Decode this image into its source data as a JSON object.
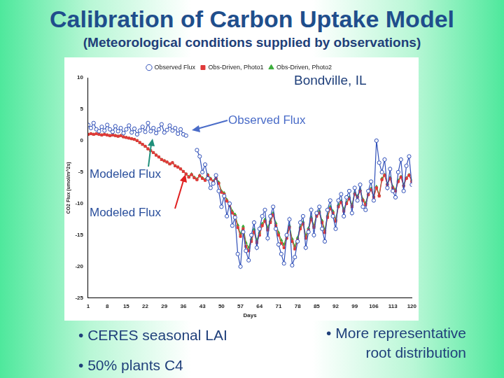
{
  "slide": {
    "title": "Calibration of Carbon Uptake Model",
    "subtitle": "(Meteorological conditions supplied by observations)",
    "annotations": {
      "location": "Bondville, IL",
      "observed": "Observed Flux",
      "modeled": [
        "Modeled Flux",
        "Modeled Flux"
      ]
    },
    "bullets_left": [
      "• CERES seasonal LAI",
      "• 50% plants C4"
    ],
    "bullets_right": [
      "• More representative",
      "root distribution"
    ]
  },
  "chart_data": {
    "type": "line",
    "x_label": "Days",
    "y_label": "CO2 Flux (umol/m^2s)",
    "x": [
      1,
      2,
      3,
      4,
      5,
      6,
      7,
      8,
      9,
      10,
      11,
      12,
      13,
      14,
      15,
      16,
      17,
      18,
      19,
      20,
      21,
      22,
      23,
      24,
      25,
      26,
      27,
      28,
      29,
      30,
      31,
      32,
      33,
      34,
      35,
      36,
      37,
      38,
      39,
      40,
      41,
      42,
      43,
      44,
      45,
      46,
      47,
      48,
      49,
      50,
      51,
      52,
      53,
      54,
      55,
      56,
      57,
      58,
      59,
      60,
      61,
      62,
      63,
      64,
      65,
      66,
      67,
      68,
      69,
      70,
      71,
      72,
      73,
      74,
      75,
      76,
      77,
      78,
      79,
      80,
      81,
      82,
      83,
      84,
      85,
      86,
      87,
      88,
      89,
      90,
      91,
      92,
      93,
      94,
      95,
      96,
      97,
      98,
      99,
      100,
      101,
      102,
      103,
      104,
      105,
      106,
      107,
      108,
      109,
      110,
      111,
      112,
      113,
      114,
      115,
      116,
      117,
      118,
      119,
      120
    ],
    "xlim": [
      1,
      120
    ],
    "xticks": [
      1,
      8,
      15,
      22,
      29,
      36,
      43,
      50,
      57,
      64,
      71,
      78,
      85,
      92,
      99,
      106,
      113,
      120
    ],
    "ylim": [
      -25,
      10
    ],
    "yticks": [
      -25,
      -20,
      -15,
      -10,
      -5,
      0,
      5,
      10
    ],
    "grid": false,
    "legend": "top",
    "series": [
      {
        "name": "Observed Flux",
        "color": "#2f4fb8",
        "marker": "circle",
        "values": [
          2.5,
          2.0,
          2.8,
          1.8,
          1.5,
          2.2,
          1.6,
          2.5,
          1.8,
          1.4,
          2.3,
          1.5,
          2.0,
          1.2,
          1.8,
          2.4,
          1.3,
          1.9,
          1.0,
          1.6,
          2.2,
          1.4,
          2.8,
          1.5,
          2.0,
          1.2,
          1.8,
          2.6,
          1.3,
          1.7,
          2.4,
          1.6,
          2.0,
          1.1,
          1.8,
          1.0,
          0.8,
          null,
          null,
          null,
          -1.5,
          -2.5,
          -5.0,
          -3.8,
          -6.0,
          -7.5,
          -6.8,
          -5.5,
          -8.0,
          -10.5,
          -8.8,
          -12.0,
          -10.0,
          -13.5,
          -12.2,
          -18.0,
          -20.0,
          -14.5,
          -17.5,
          -19.0,
          -15.0,
          -13.0,
          -17.0,
          -14.0,
          -12.0,
          -11.0,
          -15.5,
          -12.0,
          -10.5,
          -14.0,
          -16.5,
          -18.0,
          -19.5,
          -15.0,
          -12.5,
          -19.8,
          -18.5,
          -16.0,
          -13.0,
          -12.0,
          -17.0,
          -14.5,
          -11.0,
          -15.0,
          -11.5,
          -10.5,
          -14.0,
          -16.0,
          -11.0,
          -9.5,
          -12.0,
          -14.0,
          -9.5,
          -8.5,
          -12.0,
          -9.0,
          -8.0,
          -11.5,
          -7.5,
          -9.5,
          -7.0,
          -10.5,
          -11.0,
          -8.0,
          -6.5,
          -9.5,
          0.0,
          -3.5,
          -5.0,
          -3.0,
          -7.5,
          -4.5,
          -8.0,
          -9.0,
          -5.0,
          -3.0,
          -8.0,
          -4.0,
          -2.5,
          -7.0
        ]
      },
      {
        "name": "Obs-Driven, Photo1",
        "color": "#e03a3a",
        "marker": "square",
        "values": [
          1.0,
          1.1,
          1.0,
          1.1,
          1.0,
          0.9,
          1.0,
          0.9,
          0.8,
          0.9,
          0.8,
          0.7,
          0.8,
          0.6,
          0.5,
          0.4,
          0.3,
          0.2,
          0.0,
          -0.3,
          -0.6,
          -0.9,
          -1.3,
          -1.6,
          -1.9,
          -2.3,
          -2.6,
          -3.0,
          -3.2,
          -3.4,
          -3.7,
          -3.5,
          -4.0,
          -4.2,
          -4.5,
          -4.9,
          -5.3,
          -5.8,
          -5.4,
          -5.9,
          -6.2,
          -5.6,
          -6.0,
          -6.3,
          -5.5,
          -6.1,
          -6.5,
          -6.0,
          -6.8,
          -8.2,
          -8.5,
          -9.6,
          -10.3,
          -11.5,
          -12.0,
          -13.8,
          -15.2,
          -14.0,
          -16.8,
          -17.5,
          -16.0,
          -14.5,
          -16.2,
          -15.0,
          -13.5,
          -12.8,
          -14.2,
          -13.0,
          -11.8,
          -13.5,
          -15.0,
          -16.3,
          -17.0,
          -15.5,
          -13.8,
          -16.0,
          -17.2,
          -15.8,
          -14.0,
          -13.2,
          -15.5,
          -14.2,
          -12.5,
          -13.8,
          -12.0,
          -11.5,
          -13.0,
          -14.6,
          -12.2,
          -10.8,
          -11.5,
          -12.8,
          -10.5,
          -9.8,
          -11.2,
          -10.0,
          -9.2,
          -10.5,
          -8.5,
          -9.0,
          -8.0,
          -9.5,
          -10.2,
          -8.6,
          -7.8,
          -9.0,
          -7.5,
          -8.8,
          -6.2,
          -5.5,
          -7.0,
          -6.0,
          -7.5,
          -8.0,
          -6.5,
          -5.8,
          -7.2,
          -6.0,
          -5.5,
          -6.5
        ]
      },
      {
        "name": "Obs-Driven, Photo2",
        "color": "#3cad3c",
        "marker": "triangle",
        "values": [
          1.0,
          1.1,
          1.0,
          1.1,
          1.0,
          0.9,
          1.0,
          0.9,
          0.8,
          0.9,
          0.8,
          0.7,
          0.8,
          0.6,
          0.5,
          0.4,
          0.3,
          0.2,
          0.0,
          -0.3,
          -0.6,
          -0.9,
          -1.3,
          -1.6,
          -1.9,
          -2.3,
          -2.6,
          -3.0,
          -3.2,
          -3.4,
          -3.7,
          -3.5,
          -4.0,
          -4.2,
          -4.5,
          -4.9,
          -5.3,
          -5.7,
          -5.3,
          -5.8,
          -6.1,
          -5.5,
          -5.9,
          -6.2,
          -5.4,
          -6.0,
          -6.4,
          -5.9,
          -6.6,
          -8.0,
          -8.3,
          -9.4,
          -10.0,
          -11.2,
          -11.7,
          -13.4,
          -14.8,
          -13.6,
          -16.2,
          -17.0,
          -15.6,
          -14.1,
          -15.8,
          -14.6,
          -13.2,
          -12.5,
          -13.8,
          -12.7,
          -11.5,
          -13.1,
          -14.6,
          -15.8,
          -16.5,
          -15.1,
          -13.5,
          -15.6,
          -16.8,
          -15.4,
          -13.7,
          -12.9,
          -15.1,
          -13.9,
          -12.2,
          -13.5,
          -11.7,
          -11.2,
          -12.7,
          -14.2,
          -11.9,
          -10.5,
          -11.2,
          -12.5,
          -10.2,
          -9.6,
          -10.9,
          -9.8,
          -9.0,
          -10.2,
          -8.3,
          -8.8,
          -7.8,
          -9.3,
          -9.9,
          -8.4,
          -7.6,
          -8.8,
          -7.3,
          -8.6,
          -6.0,
          -5.4,
          -6.8,
          -5.9,
          -7.3,
          -7.8,
          -6.3,
          -5.7,
          -7.0,
          -5.9,
          -5.4,
          -6.3
        ]
      }
    ]
  }
}
